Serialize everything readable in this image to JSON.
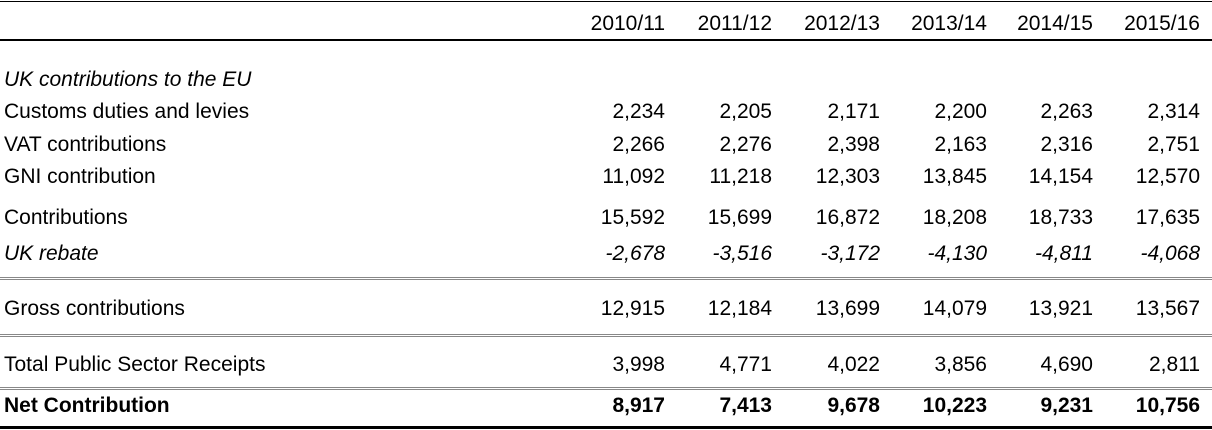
{
  "table": {
    "columns": [
      "2010/11",
      "2011/12",
      "2012/13",
      "2013/14",
      "2014/15",
      "2015/16"
    ],
    "section": "UK contributions to the EU",
    "rows": [
      {
        "label": "Customs duties and levies",
        "values": [
          "2,234",
          "2,205",
          "2,171",
          "2,200",
          "2,263",
          "2,314"
        ]
      },
      {
        "label": "VAT contributions",
        "values": [
          "2,266",
          "2,276",
          "2,398",
          "2,163",
          "2,316",
          "2,751"
        ]
      },
      {
        "label": "GNI contribution",
        "values": [
          "11,092",
          "11,218",
          "12,303",
          "13,845",
          "14,154",
          "12,570"
        ]
      },
      {
        "label": "Contributions",
        "values": [
          "15,592",
          "15,699",
          "16,872",
          "18,208",
          "18,733",
          "17,635"
        ]
      },
      {
        "label": "UK rebate",
        "values": [
          "-2,678",
          "-3,516",
          "-3,172",
          "-4,130",
          "-4,811",
          "-4,068"
        ]
      },
      {
        "label": "Gross contributions",
        "values": [
          "12,915",
          "12,184",
          "13,699",
          "14,079",
          "13,921",
          "13,567"
        ]
      },
      {
        "label": "Total Public Sector Receipts",
        "values": [
          "3,998",
          "4,771",
          "4,022",
          "3,856",
          "4,690",
          "2,811"
        ]
      },
      {
        "label": "Net Contribution",
        "values": [
          "8,917",
          "7,413",
          "9,678",
          "10,223",
          "9,231",
          "10,756"
        ]
      }
    ]
  }
}
